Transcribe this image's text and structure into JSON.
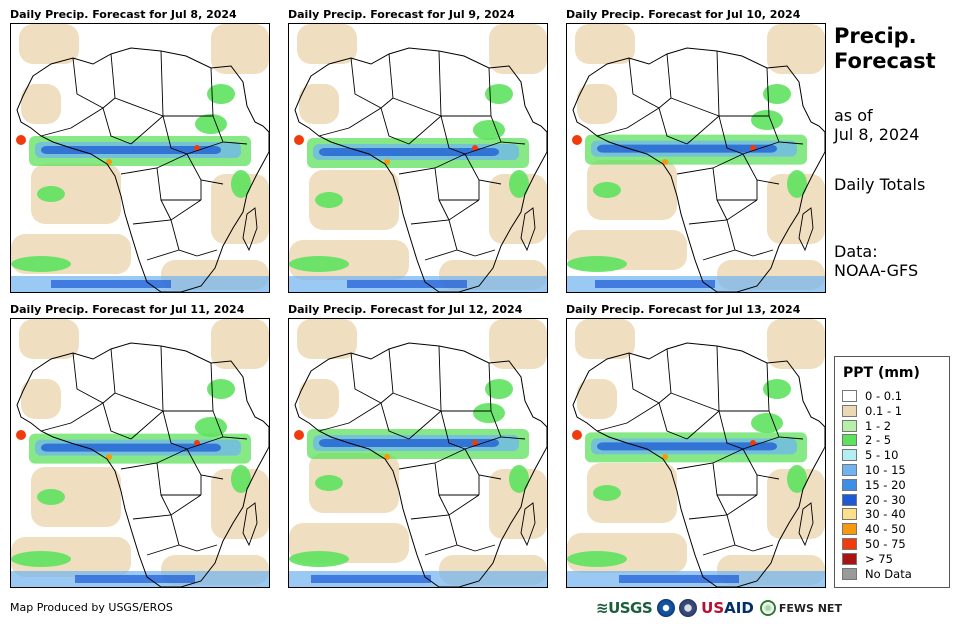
{
  "panels": [
    {
      "title": "Daily Precip. Forecast for Jul 8, 2024"
    },
    {
      "title": "Daily Precip. Forecast for Jul 9, 2024"
    },
    {
      "title": "Daily Precip. Forecast for Jul 10, 2024"
    },
    {
      "title": "Daily Precip. Forecast for Jul 11, 2024"
    },
    {
      "title": "Daily Precip. Forecast for Jul 12, 2024"
    },
    {
      "title": "Daily Precip. Forecast for Jul 13, 2024"
    }
  ],
  "side": {
    "title_line1": "Precip.",
    "title_line2": "Forecast",
    "asof_line1": "as of",
    "asof_line2": "Jul 8, 2024",
    "totals": "Daily Totals",
    "data_line1": "Data:",
    "data_line2": "NOAA-GFS"
  },
  "legend": {
    "title": "PPT (mm)",
    "items": [
      {
        "label": "0 - 0.1",
        "color": "#ffffff"
      },
      {
        "label": "0.1 - 1",
        "color": "#ecd8b4"
      },
      {
        "label": "1 - 2",
        "color": "#b6f0a6"
      },
      {
        "label": "2 - 5",
        "color": "#5ee25e"
      },
      {
        "label": "5 - 10",
        "color": "#b2eef2"
      },
      {
        "label": "10 - 15",
        "color": "#6fb3f0"
      },
      {
        "label": "15 - 20",
        "color": "#3c8ee8"
      },
      {
        "label": "20 - 30",
        "color": "#1c5ad6"
      },
      {
        "label": "30 - 40",
        "color": "#fde08a"
      },
      {
        "label": "40 - 50",
        "color": "#f59a10"
      },
      {
        "label": "50 - 75",
        "color": "#f03c0c"
      },
      {
        "label": "> 75",
        "color": "#a81414"
      },
      {
        "label": "No Data",
        "color": "#9a9a9a"
      }
    ]
  },
  "footer": {
    "credit": "Map Produced by USGS/EROS",
    "logo_usgs": "≋USGS",
    "logo_usaid_a": "US",
    "logo_usaid_b": "AID",
    "logo_fews": "FEWS NET"
  }
}
